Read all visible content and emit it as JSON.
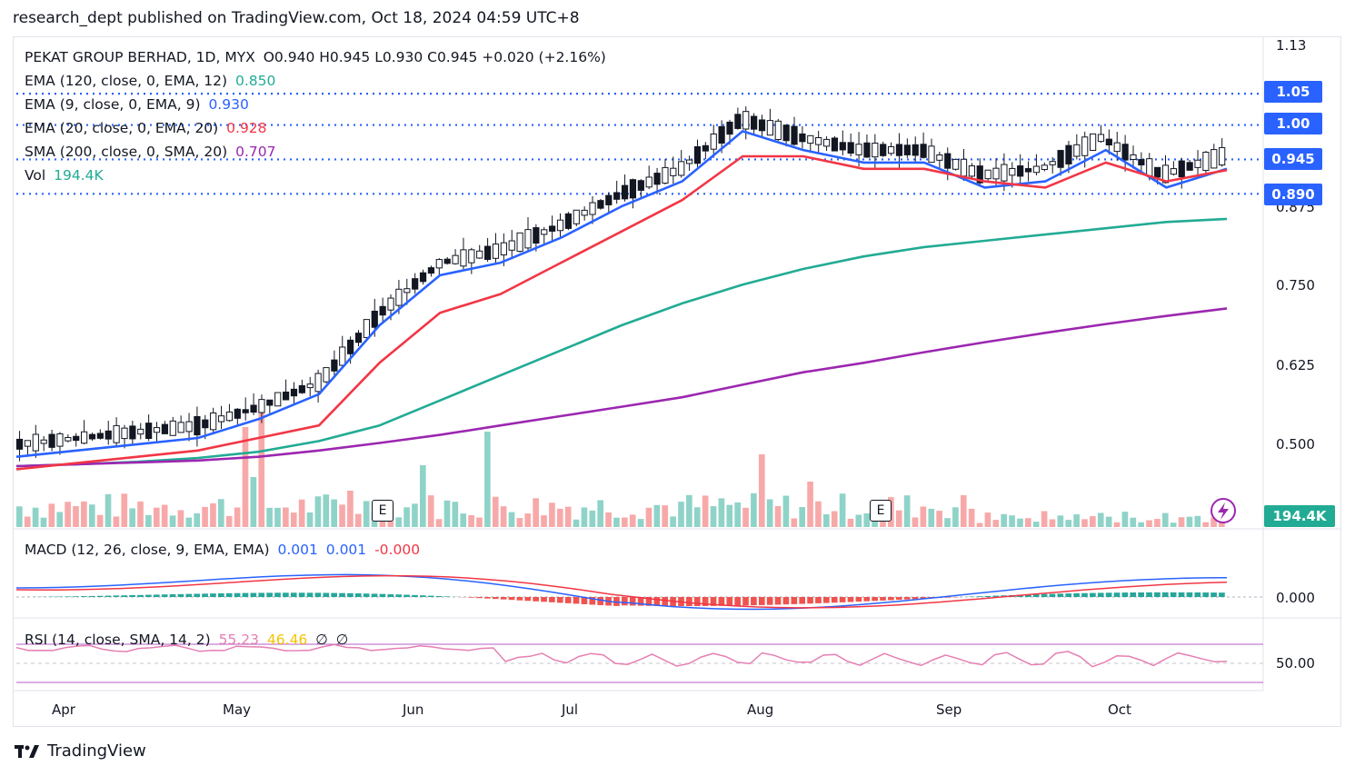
{
  "header": {
    "text": "research_dept published on TradingView.com, Oct 18, 2024 04:59 UTC+8"
  },
  "footer": {
    "brand": "TradingView",
    "logo_icon": "tradingview-logo-icon"
  },
  "legend": {
    "symbol": "PEKAT GROUP BERHAD, 1D, MYX",
    "ohlc": "O0.940  H0.945  L0.930  C0.945  +0.020 (+2.16%)",
    "ema120_label": "EMA (120, close, 0, EMA, 12)",
    "ema120_value": "0.850",
    "ema9_label": "EMA (9, close, 0, EMA, 9)",
    "ema9_value": "0.930",
    "ema20_label": "EMA (20, close, 0, EMA, 20)",
    "ema20_value": "0.928",
    "sma200_label": "SMA (200, close, 0, SMA, 20)",
    "sma200_value": "0.707",
    "vol_label": "Vol",
    "vol_value": "194.4K",
    "macd_label": "MACD (12, 26, close, 9, EMA, EMA)",
    "macd_v1": "0.001",
    "macd_v2": "0.001",
    "macd_v3": "-0.000",
    "rsi_label": "RSI (14, close, SMA, 14, 2)",
    "rsi_v1": "55.23",
    "rsi_v2": "46.46",
    "rsi_v3": "∅",
    "rsi_v4": "∅"
  },
  "colors": {
    "up": "#ffffff",
    "down": "#131722",
    "ema9": "#2962ff",
    "ema20": "#f23645",
    "ema120": "#22ab94",
    "sma200": "#9c27b0",
    "level": "#2962ff",
    "vol_up": "#22ab94",
    "vol_down": "#f7525f"
  },
  "price_tags": [
    {
      "label": "1.05",
      "value": 1.05
    },
    {
      "label": "1.00",
      "value": 1.0
    },
    {
      "label": "0.945",
      "value": 0.945
    },
    {
      "label": "0.890",
      "value": 0.89
    }
  ],
  "vol_tag": "194.4K",
  "earnings_badge": "E",
  "chart_data": {
    "type": "candlestick",
    "price_axis": {
      "ticks": [
        "1.13",
        "0.875",
        "0.750",
        "0.625",
        "0.500"
      ],
      "range": [
        0.44,
        1.13
      ]
    },
    "macd_axis": {
      "ticks": [
        "0.000"
      ]
    },
    "rsi_axis": {
      "ticks": [
        "50.00"
      ]
    },
    "x_labels": [
      "Apr",
      "May",
      "Jun",
      "Jul",
      "Aug",
      "Sep",
      "Oct"
    ],
    "horizontal_levels": [
      1.05,
      1.0,
      0.945,
      0.89
    ],
    "series": [
      {
        "name": "EMA (120, close, 0, EMA, 12)",
        "values": [
          0.455,
          0.458,
          0.462,
          0.468,
          0.478,
          0.495,
          0.52,
          0.56,
          0.6,
          0.64,
          0.68,
          0.715,
          0.745,
          0.77,
          0.79,
          0.805,
          0.815,
          0.825,
          0.835,
          0.845,
          0.85
        ]
      },
      {
        "name": "SMA (200, close, 0, SMA, 20)",
        "values": [
          0.455,
          0.458,
          0.461,
          0.464,
          0.47,
          0.48,
          0.492,
          0.505,
          0.52,
          0.535,
          0.55,
          0.565,
          0.585,
          0.605,
          0.62,
          0.637,
          0.653,
          0.668,
          0.682,
          0.695,
          0.707
        ]
      },
      {
        "name": "EMA (9, close, 0, EMA, 9)",
        "values": [
          0.47,
          0.48,
          0.49,
          0.5,
          0.53,
          0.57,
          0.68,
          0.76,
          0.78,
          0.82,
          0.87,
          0.91,
          0.99,
          0.96,
          0.94,
          0.94,
          0.9,
          0.91,
          0.96,
          0.9,
          0.93
        ]
      },
      {
        "name": "EMA (20, close, 0, EMA, 20)",
        "values": [
          0.45,
          0.46,
          0.47,
          0.48,
          0.5,
          0.52,
          0.62,
          0.7,
          0.73,
          0.78,
          0.83,
          0.88,
          0.95,
          0.95,
          0.93,
          0.93,
          0.91,
          0.9,
          0.94,
          0.91,
          0.928
        ]
      }
    ]
  }
}
